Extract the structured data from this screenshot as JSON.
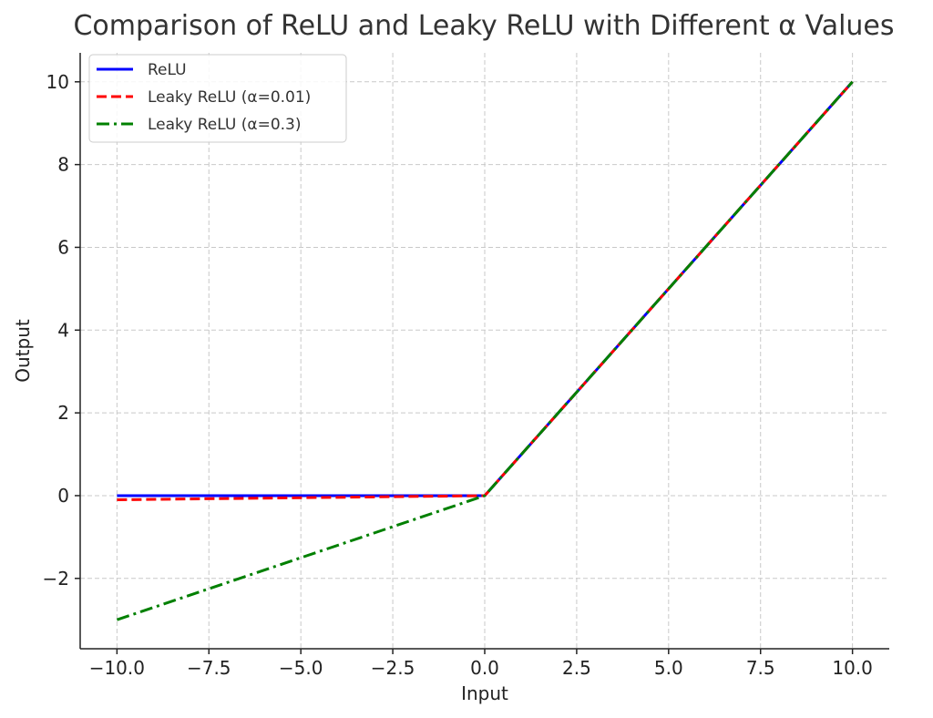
{
  "chart_data": {
    "type": "line",
    "title": "Comparison of ReLU and Leaky ReLU with Different α Values",
    "xlabel": "Input",
    "ylabel": "Output",
    "xlim": [
      -11,
      11
    ],
    "ylim": [
      -3.7,
      10.7
    ],
    "xticks": [
      -10,
      -7.5,
      -5,
      -2.5,
      0,
      2.5,
      5,
      7.5,
      10
    ],
    "xtick_labels": [
      "−10.0",
      "−7.5",
      "−5.0",
      "−2.5",
      "0.0",
      "2.5",
      "5.0",
      "7.5",
      "10.0"
    ],
    "yticks": [
      -2,
      0,
      2,
      4,
      6,
      8,
      10
    ],
    "ytick_labels": [
      "−2",
      "0",
      "2",
      "4",
      "6",
      "8",
      "10"
    ],
    "grid": true,
    "legend_position": "upper-left",
    "series": [
      {
        "name": "ReLU",
        "color": "#0000ff",
        "style": "solid",
        "x": [
          -10,
          0,
          10
        ],
        "y": [
          0,
          0,
          10
        ]
      },
      {
        "name": "Leaky ReLU (α=0.01)",
        "color": "#ff0000",
        "style": "dashed",
        "x": [
          -10,
          0,
          10
        ],
        "y": [
          -0.1,
          0,
          10
        ]
      },
      {
        "name": "Leaky ReLU (α=0.3)",
        "color": "#008000",
        "style": "dashdot",
        "x": [
          -10,
          0,
          10
        ],
        "y": [
          -3,
          0,
          10
        ]
      }
    ]
  }
}
